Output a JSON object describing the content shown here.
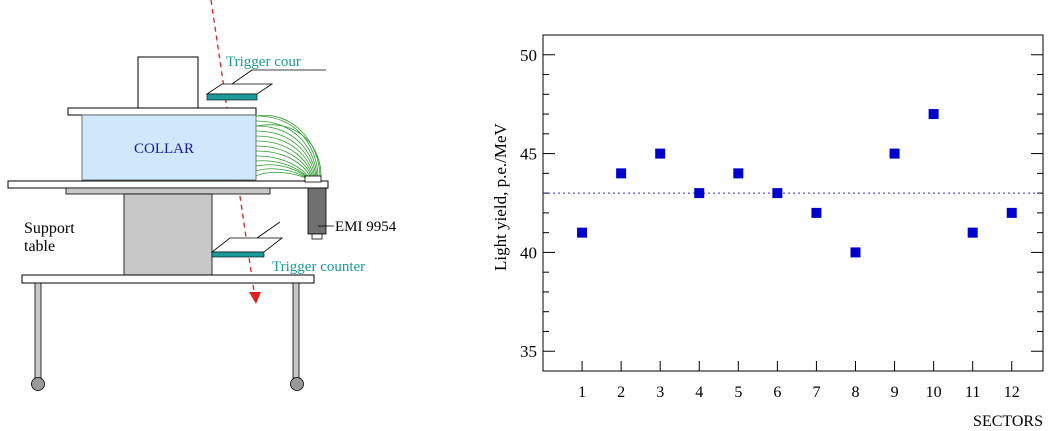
{
  "diagram": {
    "collar_label": "COLLAR",
    "support_label_line1": "Support",
    "support_label_line2": "table",
    "trigger_top_label": "Trigger cour",
    "trigger_bottom_label": "Trigger counter",
    "pmt_label": "EMI 9954",
    "colors": {
      "collar_fill": "#cfe8fb",
      "collar_text": "#1a1aa0",
      "trigger": "#1a9a9a",
      "fibers": "#2e9a2e",
      "beam": "#e02020",
      "support": "#c8c8c8",
      "pmt": "#707070"
    }
  },
  "chart_data": {
    "type": "scatter",
    "title": "",
    "xlabel": "SECTORS",
    "ylabel": "Light  yield,  p.e./MeV",
    "x": [
      1,
      2,
      3,
      4,
      5,
      6,
      7,
      8,
      9,
      10,
      11,
      12
    ],
    "y": [
      41,
      44,
      45,
      43,
      44,
      43,
      42,
      40,
      45,
      47,
      41,
      42
    ],
    "xlim": [
      0,
      12.8
    ],
    "ylim": [
      34,
      51
    ],
    "x_ticks": [
      "1",
      "2",
      "3",
      "4",
      "5",
      "6",
      "7",
      "8",
      "9",
      "10",
      "11",
      "12"
    ],
    "y_ticks": [
      "35",
      "40",
      "45",
      "50"
    ],
    "reference_line": {
      "y": 43,
      "style": "dotted"
    },
    "marker": "square",
    "marker_color": "#0000cc",
    "grid": false
  }
}
